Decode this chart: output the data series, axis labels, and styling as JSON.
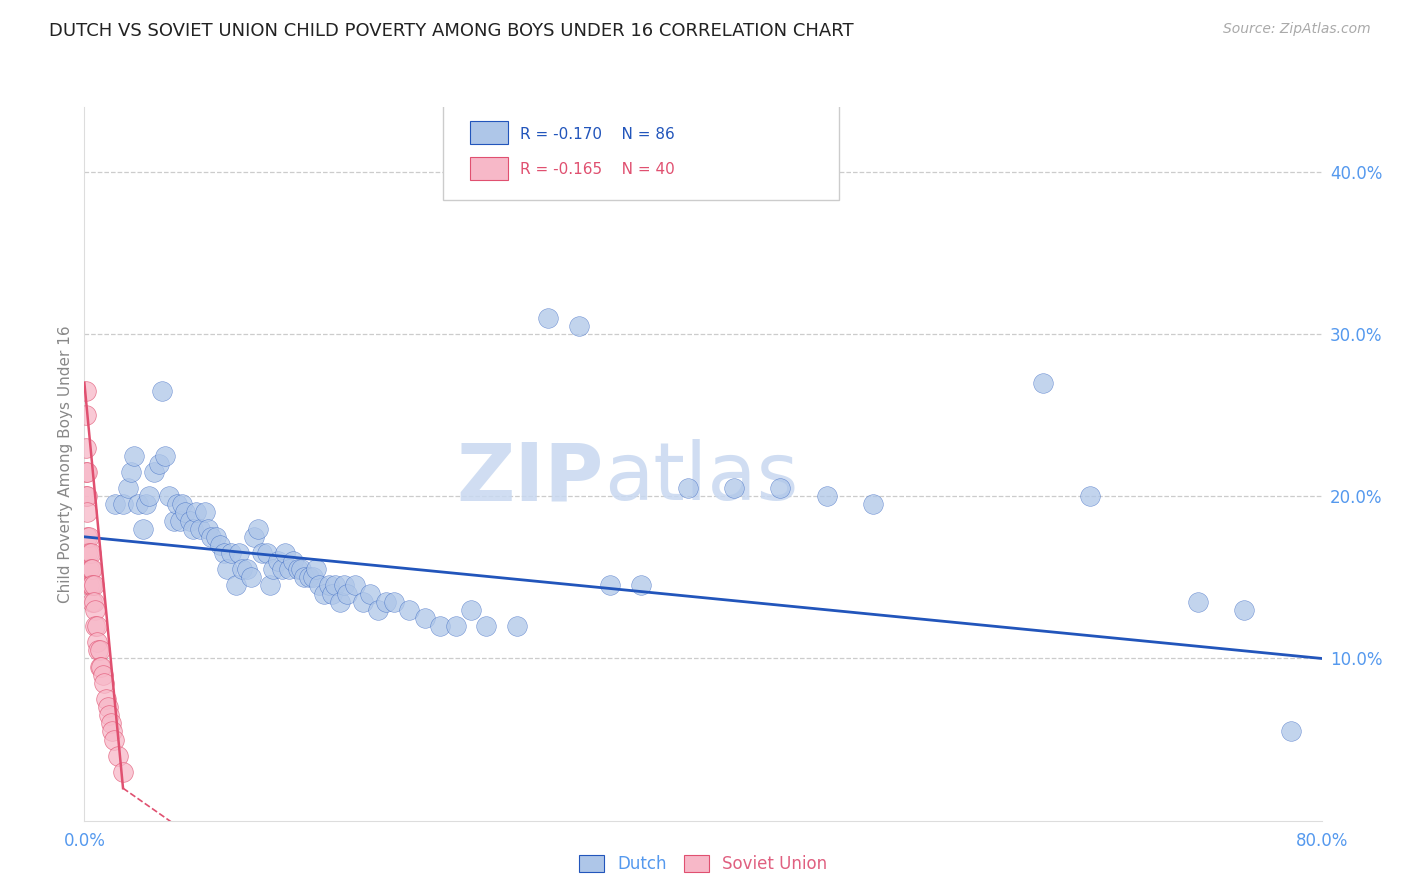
{
  "title": "DUTCH VS SOVIET UNION CHILD POVERTY AMONG BOYS UNDER 16 CORRELATION CHART",
  "source": "Source: ZipAtlas.com",
  "ylabel": "Child Poverty Among Boys Under 16",
  "xlim": [
    0.0,
    0.8
  ],
  "ylim": [
    0.0,
    0.44
  ],
  "xticks": [
    0.0,
    0.1,
    0.2,
    0.3,
    0.4,
    0.5,
    0.6,
    0.7,
    0.8
  ],
  "yticks_right": [
    0.1,
    0.2,
    0.3,
    0.4
  ],
  "ytick_labels_right": [
    "10.0%",
    "20.0%",
    "30.0%",
    "40.0%"
  ],
  "dutch_color": "#aec6e8",
  "soviet_color": "#f7b8c8",
  "trend_blue_color": "#2255bb",
  "trend_pink_color": "#e05070",
  "watermark_zip": "ZIP",
  "watermark_atlas": "atlas",
  "background_color": "#ffffff",
  "grid_color": "#cccccc",
  "title_color": "#222222",
  "axis_label_color": "#888888",
  "right_tick_color": "#5599ee",
  "bottom_tick_color": "#5599ee",
  "dutch_scatter_x": [
    0.02,
    0.025,
    0.028,
    0.03,
    0.032,
    0.035,
    0.038,
    0.04,
    0.042,
    0.045,
    0.048,
    0.05,
    0.052,
    0.055,
    0.058,
    0.06,
    0.062,
    0.063,
    0.065,
    0.068,
    0.07,
    0.072,
    0.075,
    0.078,
    0.08,
    0.082,
    0.085,
    0.088,
    0.09,
    0.092,
    0.095,
    0.098,
    0.1,
    0.102,
    0.105,
    0.108,
    0.11,
    0.112,
    0.115,
    0.118,
    0.12,
    0.122,
    0.125,
    0.128,
    0.13,
    0.132,
    0.135,
    0.138,
    0.14,
    0.142,
    0.145,
    0.148,
    0.15,
    0.152,
    0.155,
    0.158,
    0.16,
    0.162,
    0.165,
    0.168,
    0.17,
    0.175,
    0.18,
    0.185,
    0.19,
    0.195,
    0.2,
    0.21,
    0.22,
    0.23,
    0.24,
    0.25,
    0.26,
    0.28,
    0.3,
    0.32,
    0.34,
    0.36,
    0.39,
    0.42,
    0.45,
    0.48,
    0.51,
    0.62,
    0.65,
    0.72,
    0.75,
    0.78
  ],
  "dutch_scatter_y": [
    0.195,
    0.195,
    0.205,
    0.215,
    0.225,
    0.195,
    0.18,
    0.195,
    0.2,
    0.215,
    0.22,
    0.265,
    0.225,
    0.2,
    0.185,
    0.195,
    0.185,
    0.195,
    0.19,
    0.185,
    0.18,
    0.19,
    0.18,
    0.19,
    0.18,
    0.175,
    0.175,
    0.17,
    0.165,
    0.155,
    0.165,
    0.145,
    0.165,
    0.155,
    0.155,
    0.15,
    0.175,
    0.18,
    0.165,
    0.165,
    0.145,
    0.155,
    0.16,
    0.155,
    0.165,
    0.155,
    0.16,
    0.155,
    0.155,
    0.15,
    0.15,
    0.15,
    0.155,
    0.145,
    0.14,
    0.145,
    0.14,
    0.145,
    0.135,
    0.145,
    0.14,
    0.145,
    0.135,
    0.14,
    0.13,
    0.135,
    0.135,
    0.13,
    0.125,
    0.12,
    0.12,
    0.13,
    0.12,
    0.12,
    0.31,
    0.305,
    0.145,
    0.145,
    0.205,
    0.205,
    0.205,
    0.2,
    0.195,
    0.27,
    0.2,
    0.135,
    0.13,
    0.055
  ],
  "soviet_scatter_x": [
    0.001,
    0.001,
    0.001,
    0.001,
    0.001,
    0.002,
    0.002,
    0.002,
    0.002,
    0.002,
    0.003,
    0.003,
    0.003,
    0.003,
    0.004,
    0.004,
    0.004,
    0.005,
    0.005,
    0.005,
    0.006,
    0.006,
    0.007,
    0.007,
    0.008,
    0.008,
    0.009,
    0.01,
    0.01,
    0.011,
    0.012,
    0.013,
    0.014,
    0.015,
    0.016,
    0.017,
    0.018,
    0.019,
    0.022,
    0.025
  ],
  "soviet_scatter_y": [
    0.265,
    0.25,
    0.23,
    0.215,
    0.2,
    0.215,
    0.2,
    0.19,
    0.175,
    0.165,
    0.175,
    0.165,
    0.155,
    0.145,
    0.165,
    0.155,
    0.145,
    0.155,
    0.145,
    0.135,
    0.145,
    0.135,
    0.13,
    0.12,
    0.12,
    0.11,
    0.105,
    0.105,
    0.095,
    0.095,
    0.09,
    0.085,
    0.075,
    0.07,
    0.065,
    0.06,
    0.055,
    0.05,
    0.04,
    0.03
  ],
  "blue_trend_x": [
    0.0,
    0.8
  ],
  "blue_trend_y": [
    0.175,
    0.1
  ],
  "pink_trend_x": [
    0.0,
    0.025
  ],
  "pink_trend_y": [
    0.27,
    0.02
  ]
}
